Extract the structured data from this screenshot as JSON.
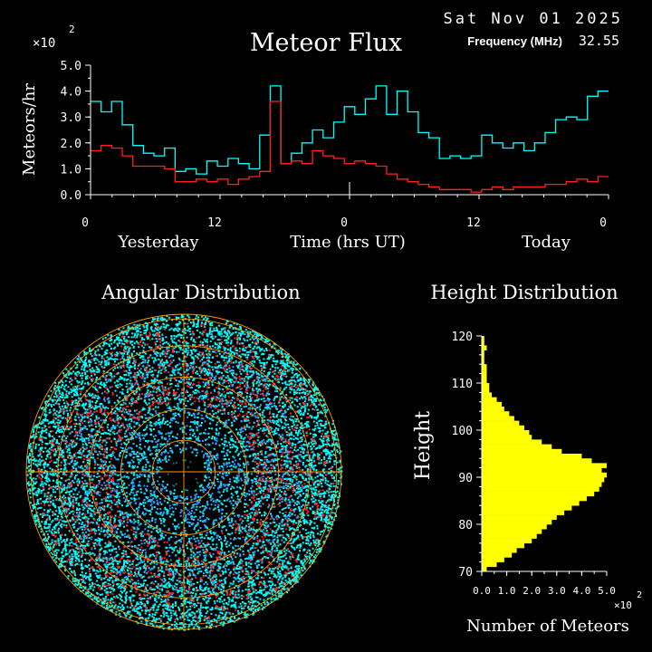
{
  "header": {
    "title": "Meteor Flux",
    "date": "Sat Nov 01 2025",
    "frequency_label": "Frequency (MHz)",
    "frequency_value": "32.55"
  },
  "colors": {
    "background": "#000000",
    "axis": "#ffffff",
    "cyan_series": "#00ffff",
    "red_series": "#ff2020",
    "height_bars": "#ffff00",
    "polar_rings": "#ff9900"
  },
  "chart_data": [
    {
      "type": "line",
      "title": "Meteor Flux",
      "ylabel": "Meteors/hr",
      "y_multiplier": "×10",
      "y_multiplier_exp": "2",
      "xlabel": "Time (hrs UT)",
      "day_labels": [
        "Yesterday",
        "Today"
      ],
      "x_tick_labels": [
        "0",
        "12",
        "0",
        "12",
        "0"
      ],
      "x_ticks": [
        0,
        12,
        24,
        36,
        48
      ],
      "xlim": [
        0,
        48
      ],
      "ylim": [
        0,
        5
      ],
      "y_tick_labels": [
        "0.0",
        "1.0",
        "2.0",
        "3.0",
        "4.0",
        "5.0"
      ],
      "y_ticks": [
        0,
        1,
        2,
        3,
        4,
        5
      ],
      "series": [
        {
          "color": "cyan",
          "values": [
            3.6,
            3.2,
            3.6,
            2.7,
            1.9,
            1.6,
            1.5,
            1.8,
            0.9,
            1.0,
            0.8,
            1.3,
            1.1,
            1.4,
            1.2,
            1.0,
            2.3,
            4.2,
            1.2,
            1.6,
            2.0,
            2.5,
            2.2,
            2.8,
            3.4,
            3.1,
            3.7,
            4.2,
            3.1,
            4.0,
            3.2,
            2.4,
            2.2,
            1.4,
            1.5,
            1.4,
            1.5,
            2.3,
            2.0,
            1.8,
            2.0,
            1.7,
            2.0,
            2.4,
            2.9,
            3.0,
            2.9,
            3.8,
            4.0
          ]
        },
        {
          "color": "red",
          "values": [
            1.7,
            1.9,
            1.8,
            1.5,
            1.1,
            1.1,
            1.1,
            1.0,
            0.5,
            0.5,
            0.6,
            0.5,
            0.6,
            0.4,
            0.6,
            0.7,
            0.9,
            3.6,
            1.2,
            1.3,
            1.2,
            1.7,
            1.5,
            1.4,
            1.2,
            1.3,
            1.2,
            1.1,
            0.8,
            0.6,
            0.5,
            0.4,
            0.3,
            0.2,
            0.2,
            0.2,
            0.1,
            0.2,
            0.3,
            0.2,
            0.3,
            0.3,
            0.3,
            0.4,
            0.4,
            0.5,
            0.6,
            0.5,
            0.7
          ]
        }
      ]
    },
    {
      "type": "scatter",
      "title": "Angular Distribution",
      "projection": "polar",
      "point_colors": [
        "cyan",
        "blue",
        "red"
      ]
    },
    {
      "type": "bar",
      "orientation": "horizontal",
      "title": "Height Distribution",
      "ylabel": "Height",
      "xlabel": "Number of Meteors",
      "x_multiplier": "×10",
      "x_multiplier_exp": "2",
      "ylim": [
        70,
        120
      ],
      "xlim": [
        0,
        5
      ],
      "y_tick_labels": [
        "70",
        "80",
        "90",
        "100",
        "110",
        "120"
      ],
      "y_ticks": [
        70,
        80,
        90,
        100,
        110,
        120
      ],
      "x_tick_labels": [
        "0.0",
        "1.0",
        "2.0",
        "3.0",
        "4.0",
        "5.0"
      ],
      "x_ticks": [
        0,
        1,
        2,
        3,
        4,
        5
      ],
      "bin_width": 1,
      "bins_start": [
        70,
        71,
        72,
        73,
        74,
        75,
        76,
        77,
        78,
        79,
        80,
        81,
        82,
        83,
        84,
        85,
        86,
        87,
        88,
        89,
        90,
        91,
        92,
        93,
        94,
        95,
        96,
        97,
        98,
        99,
        100,
        101,
        102,
        103,
        104,
        105,
        106,
        107,
        108,
        109,
        110,
        111,
        112,
        113,
        114,
        115,
        116,
        117,
        118,
        119
      ],
      "values": [
        0.2,
        0.6,
        0.9,
        1.2,
        1.4,
        1.7,
        2.0,
        2.2,
        2.4,
        2.6,
        2.8,
        3.0,
        3.3,
        3.6,
        3.9,
        4.2,
        4.5,
        4.7,
        4.8,
        4.9,
        5.0,
        4.8,
        5.0,
        4.4,
        4.0,
        3.2,
        2.8,
        2.4,
        2.0,
        1.9,
        1.7,
        1.5,
        1.3,
        1.1,
        0.9,
        0.8,
        0.6,
        0.4,
        0.3,
        0.3,
        0.2,
        0.2,
        0.2,
        0.2,
        0.1,
        0.1,
        0.1,
        0.2,
        0.1,
        0.1
      ]
    }
  ]
}
